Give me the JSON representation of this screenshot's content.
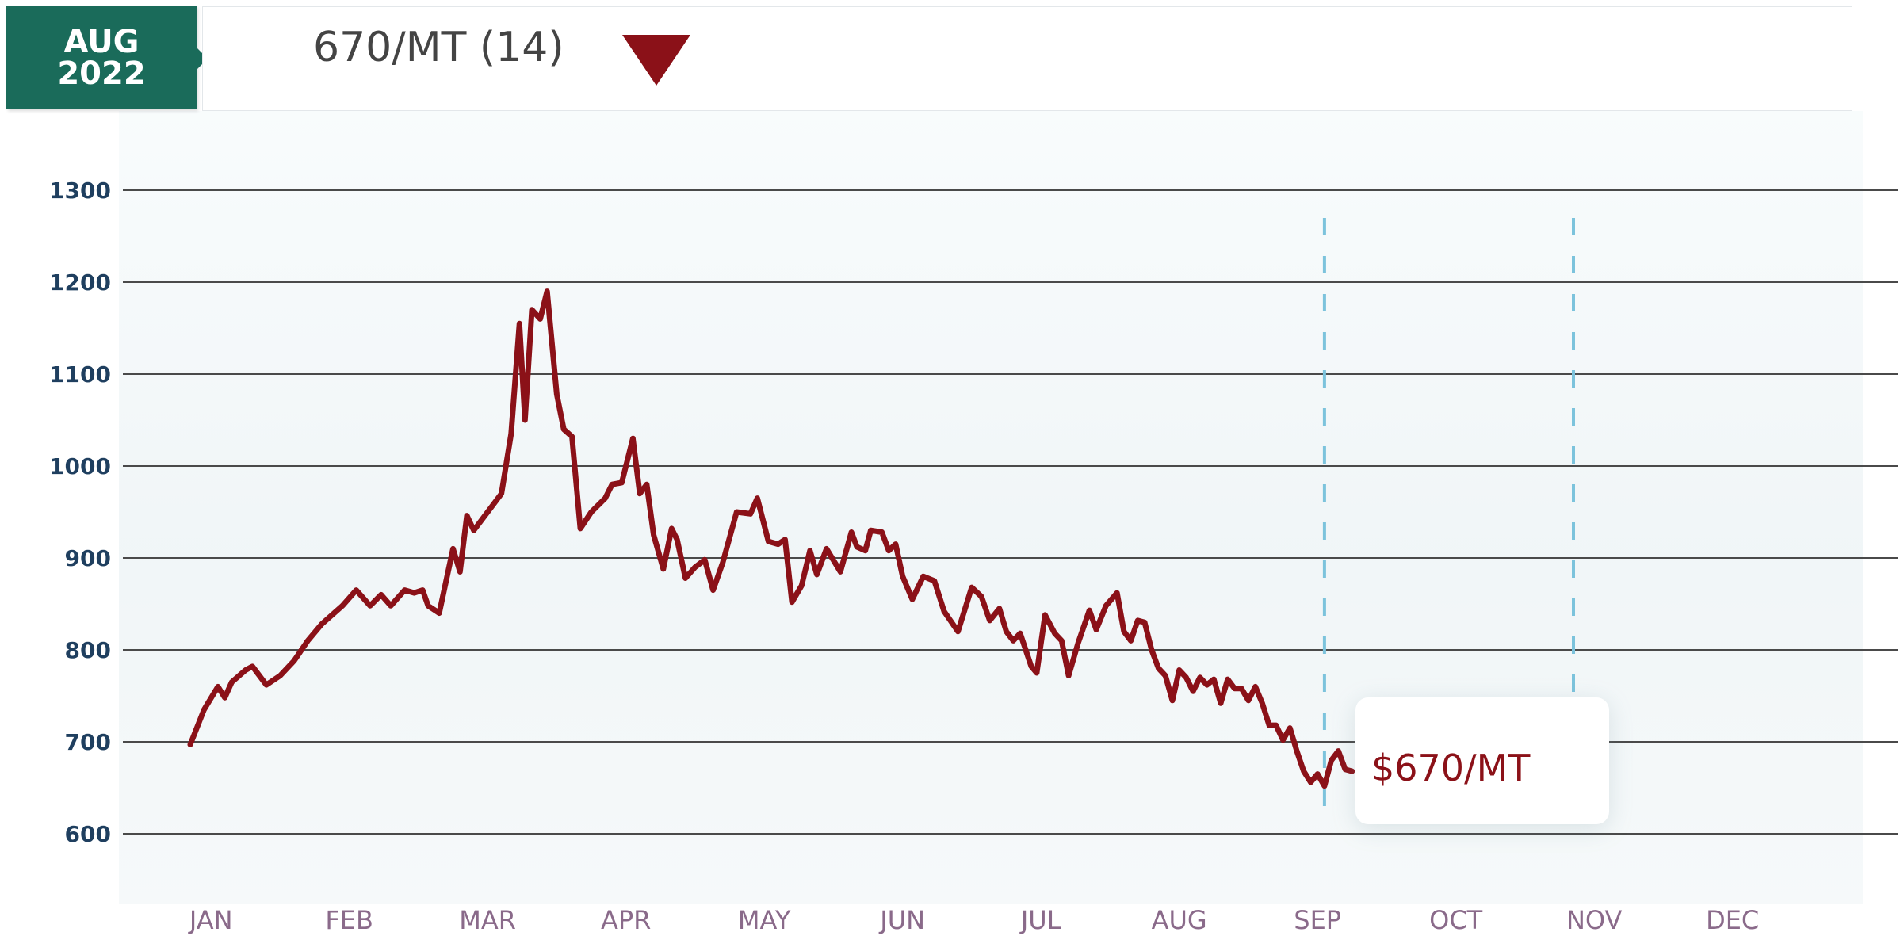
{
  "header": {
    "badge_month": "AUG",
    "badge_year": "2022",
    "value_text": "670/MT (14)"
  },
  "callout": {
    "price_text": "$670/MT"
  },
  "colors": {
    "line": "#8b1118",
    "badge": "#1a6b5a",
    "grid": "#4a4a4a",
    "axis_text": "#1f3f5f",
    "month_text": "#8a6a8a",
    "dashed_marker": "#7cc3dc"
  },
  "icons": {
    "trend": "down-triangle-icon"
  },
  "chart_data": {
    "type": "line",
    "title": "",
    "xlabel": "",
    "ylabel": "",
    "ylim": [
      600,
      1300
    ],
    "yticks": [
      1300,
      1200,
      1100,
      1000,
      900,
      800,
      700,
      600
    ],
    "xlim": [
      0,
      12
    ],
    "month_labels": [
      "JAN",
      "FEB",
      "MAR",
      "APR",
      "MAY",
      "JUN",
      "JUL",
      "AUG",
      "SEP",
      "OCT",
      "NOV",
      "DEC"
    ],
    "grid": true,
    "markers": [
      8.2,
      10.0
    ],
    "series": [
      {
        "values": [
          [
            0.0,
            697
          ],
          [
            0.1,
            735
          ],
          [
            0.2,
            760
          ],
          [
            0.25,
            748
          ],
          [
            0.3,
            765
          ],
          [
            0.4,
            778
          ],
          [
            0.45,
            782
          ],
          [
            0.55,
            762
          ],
          [
            0.65,
            772
          ],
          [
            0.75,
            788
          ],
          [
            0.85,
            810
          ],
          [
            0.95,
            828
          ],
          [
            1.1,
            848
          ],
          [
            1.2,
            865
          ],
          [
            1.3,
            848
          ],
          [
            1.38,
            860
          ],
          [
            1.45,
            848
          ],
          [
            1.55,
            865
          ],
          [
            1.62,
            862
          ],
          [
            1.68,
            865
          ],
          [
            1.72,
            848
          ],
          [
            1.8,
            840
          ],
          [
            1.9,
            910
          ],
          [
            1.95,
            885
          ],
          [
            2.0,
            946
          ],
          [
            2.05,
            930
          ],
          [
            2.15,
            950
          ],
          [
            2.25,
            970
          ],
          [
            2.32,
            1035
          ],
          [
            2.38,
            1155
          ],
          [
            2.42,
            1050
          ],
          [
            2.47,
            1170
          ],
          [
            2.53,
            1160
          ],
          [
            2.58,
            1190
          ],
          [
            2.65,
            1078
          ],
          [
            2.7,
            1040
          ],
          [
            2.76,
            1032
          ],
          [
            2.82,
            932
          ],
          [
            2.9,
            950
          ],
          [
            3.0,
            965
          ],
          [
            3.05,
            980
          ],
          [
            3.12,
            982
          ],
          [
            3.2,
            1030
          ],
          [
            3.25,
            970
          ],
          [
            3.3,
            980
          ],
          [
            3.35,
            925
          ],
          [
            3.42,
            888
          ],
          [
            3.48,
            932
          ],
          [
            3.52,
            920
          ],
          [
            3.58,
            878
          ],
          [
            3.65,
            890
          ],
          [
            3.72,
            898
          ],
          [
            3.78,
            865
          ],
          [
            3.85,
            895
          ],
          [
            3.95,
            950
          ],
          [
            4.05,
            948
          ],
          [
            4.1,
            965
          ],
          [
            4.18,
            918
          ],
          [
            4.25,
            915
          ],
          [
            4.3,
            920
          ],
          [
            4.35,
            852
          ],
          [
            4.42,
            870
          ],
          [
            4.48,
            908
          ],
          [
            4.53,
            882
          ],
          [
            4.6,
            910
          ],
          [
            4.7,
            885
          ],
          [
            4.78,
            928
          ],
          [
            4.82,
            912
          ],
          [
            4.88,
            908
          ],
          [
            4.92,
            930
          ],
          [
            5.0,
            928
          ],
          [
            5.05,
            908
          ],
          [
            5.1,
            915
          ],
          [
            5.15,
            880
          ],
          [
            5.22,
            855
          ],
          [
            5.3,
            880
          ],
          [
            5.38,
            875
          ],
          [
            5.45,
            842
          ],
          [
            5.55,
            820
          ],
          [
            5.65,
            868
          ],
          [
            5.72,
            858
          ],
          [
            5.78,
            832
          ],
          [
            5.85,
            845
          ],
          [
            5.9,
            820
          ],
          [
            5.95,
            810
          ],
          [
            6.0,
            818
          ],
          [
            6.08,
            782
          ],
          [
            6.12,
            775
          ],
          [
            6.18,
            838
          ],
          [
            6.25,
            818
          ],
          [
            6.3,
            810
          ],
          [
            6.35,
            772
          ],
          [
            6.42,
            808
          ],
          [
            6.5,
            843
          ],
          [
            6.55,
            822
          ],
          [
            6.62,
            848
          ],
          [
            6.7,
            862
          ],
          [
            6.75,
            820
          ],
          [
            6.8,
            810
          ],
          [
            6.85,
            832
          ],
          [
            6.9,
            830
          ],
          [
            6.95,
            800
          ],
          [
            7.0,
            780
          ],
          [
            7.05,
            772
          ],
          [
            7.1,
            745
          ],
          [
            7.15,
            778
          ],
          [
            7.2,
            770
          ],
          [
            7.25,
            755
          ],
          [
            7.3,
            770
          ],
          [
            7.35,
            762
          ],
          [
            7.4,
            768
          ],
          [
            7.45,
            742
          ],
          [
            7.5,
            768
          ],
          [
            7.55,
            758
          ],
          [
            7.6,
            758
          ],
          [
            7.65,
            745
          ],
          [
            7.7,
            760
          ],
          [
            7.75,
            742
          ],
          [
            7.8,
            718
          ],
          [
            7.85,
            718
          ],
          [
            7.9,
            702
          ],
          [
            7.95,
            715
          ],
          [
            8.0,
            690
          ],
          [
            8.05,
            668
          ],
          [
            8.1,
            656
          ],
          [
            8.15,
            665
          ],
          [
            8.2,
            652
          ],
          [
            8.25,
            680
          ],
          [
            8.3,
            690
          ],
          [
            8.35,
            670
          ],
          [
            8.4,
            668
          ]
        ]
      }
    ]
  }
}
